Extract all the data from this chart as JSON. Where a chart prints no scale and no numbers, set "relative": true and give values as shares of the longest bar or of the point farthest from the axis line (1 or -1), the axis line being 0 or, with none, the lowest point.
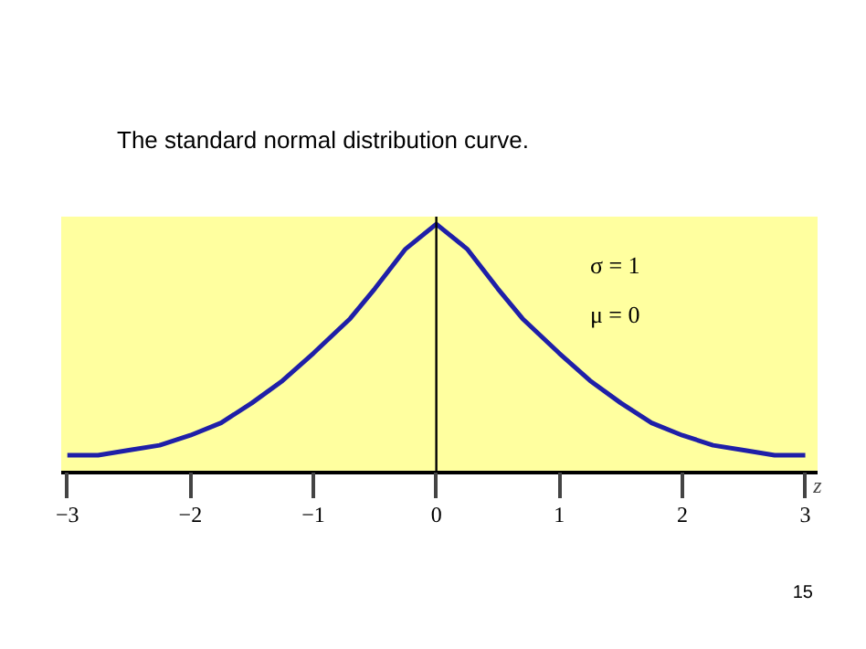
{
  "chart_data": {
    "type": "line",
    "title": "The standard normal distribution curve.",
    "xlabel": "z",
    "relative": true,
    "x": [
      -3,
      -2.75,
      -2.5,
      -2.25,
      -2,
      -1.75,
      -1.5,
      -1.25,
      -1,
      -0.7,
      -0.5,
      -0.25,
      0,
      0.25,
      0.5,
      0.7,
      1,
      1.25,
      1.5,
      1.75,
      2,
      2.25,
      2.5,
      2.75,
      3
    ],
    "series": [
      {
        "color": "#1f1fa8",
        "values": [
          0.07,
          0.07,
          0.09,
          0.11,
          0.15,
          0.2,
          0.28,
          0.37,
          0.48,
          0.62,
          0.74,
          0.9,
          1,
          0.9,
          0.74,
          0.62,
          0.48,
          0.37,
          0.28,
          0.2,
          0.15,
          0.11,
          0.09,
          0.07,
          0.07
        ]
      }
    ],
    "xlim": [
      -3.05,
      3.1
    ],
    "xticks": [
      -3,
      -2,
      -1,
      0,
      1,
      2,
      3
    ],
    "ref_lines": [
      {
        "axis": "x",
        "value": 0,
        "color": "#000000"
      }
    ],
    "annotations": [
      "σ = 1",
      "μ = 0",
      "15"
    ],
    "line_style": "solid"
  }
}
